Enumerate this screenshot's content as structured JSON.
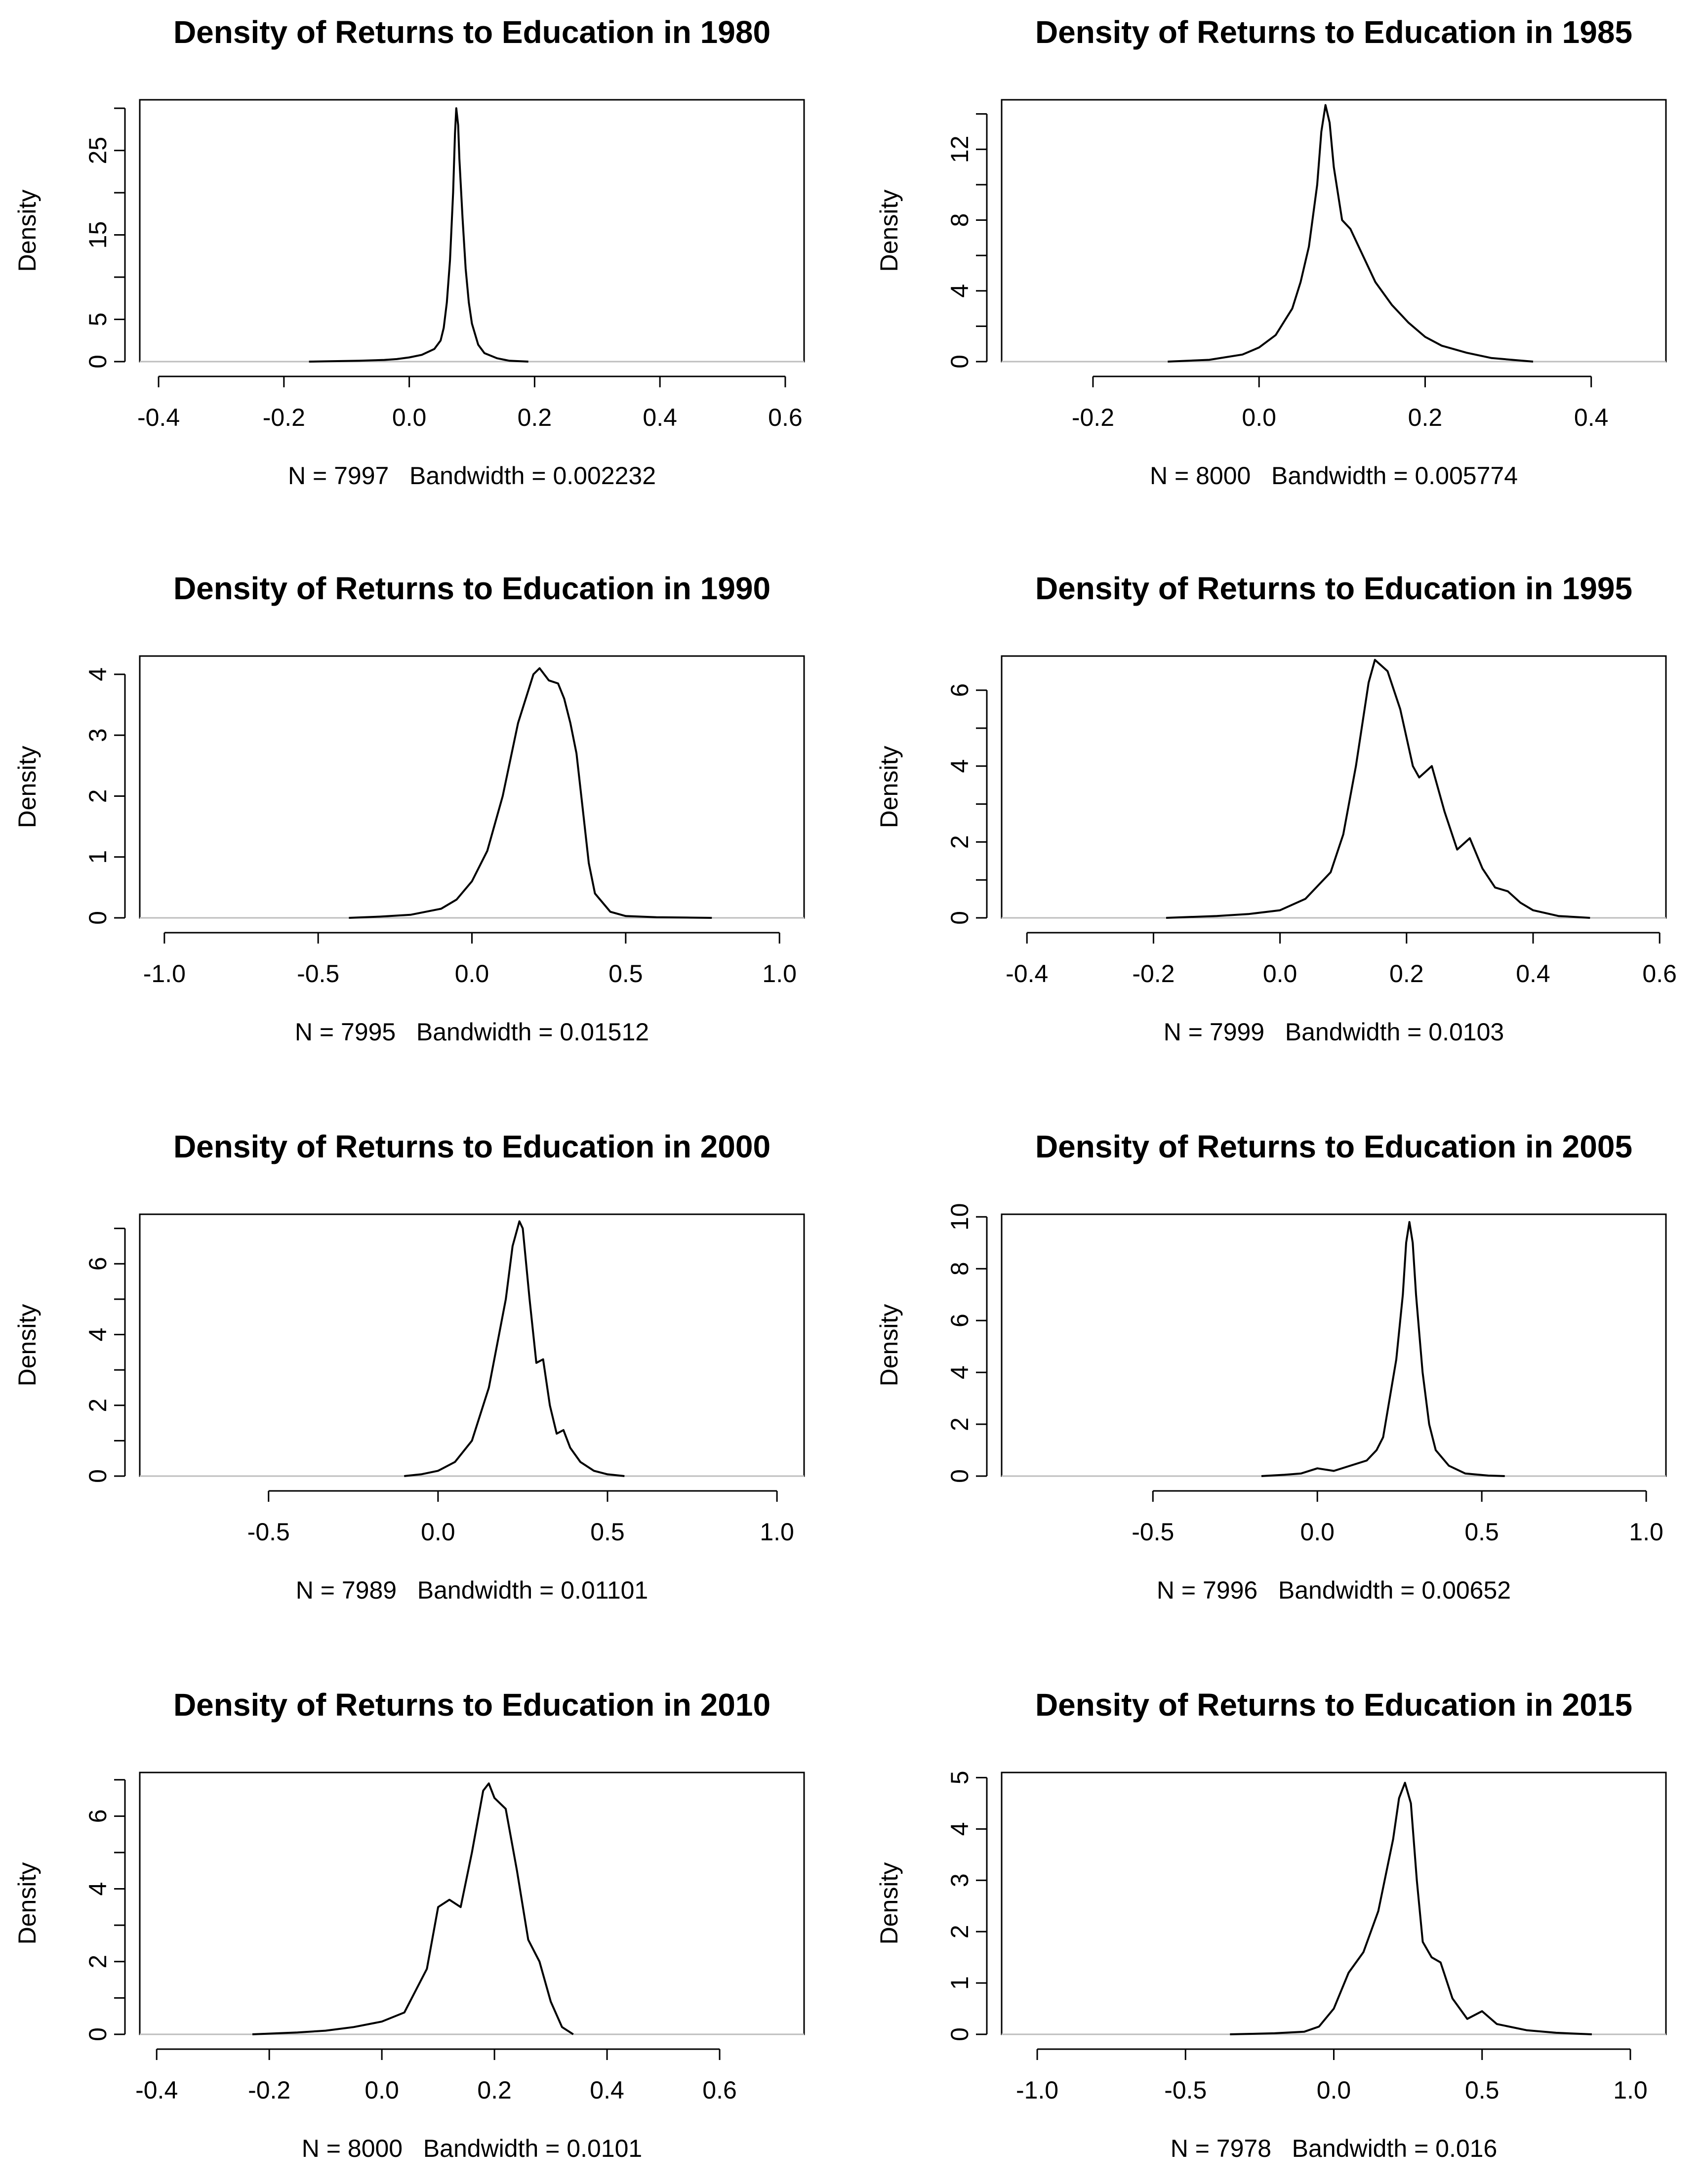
{
  "chart_data": [
    {
      "type": "line",
      "title": "Density of Returns to Education in 1980",
      "ylabel": "Density",
      "subtitle": "N = 7997   Bandwidth = 0.002232",
      "xlim": [
        -0.43,
        0.63
      ],
      "ylim": [
        0,
        31
      ],
      "xticks": [
        -0.4,
        -0.2,
        0.0,
        0.2,
        0.4,
        0.6
      ],
      "xtick_labels": [
        "-0.4",
        "-0.2",
        "0.0",
        "0.2",
        "0.4",
        "0.6"
      ],
      "yticks": [
        0,
        5,
        10,
        15,
        20,
        25,
        30
      ],
      "ytick_labels": [
        "0",
        "5",
        "",
        "15",
        "",
        "25",
        ""
      ],
      "x": [
        -0.16,
        -0.12,
        -0.08,
        -0.04,
        -0.02,
        0.0,
        0.02,
        0.04,
        0.05,
        0.055,
        0.06,
        0.065,
        0.07,
        0.073,
        0.075,
        0.078,
        0.08,
        0.085,
        0.09,
        0.095,
        0.1,
        0.11,
        0.12,
        0.14,
        0.16,
        0.19
      ],
      "y": [
        0.0,
        0.05,
        0.1,
        0.2,
        0.3,
        0.5,
        0.8,
        1.5,
        2.5,
        4.0,
        7.0,
        12.0,
        20.0,
        27.0,
        30.0,
        28.0,
        24.0,
        17.0,
        11.0,
        7.0,
        4.5,
        2.0,
        1.0,
        0.4,
        0.1,
        0.0
      ]
    },
    {
      "type": "line",
      "title": "Density of Returns to Education in 1985",
      "ylabel": "Density",
      "subtitle": "N = 8000   Bandwidth = 0.005774",
      "xlim": [
        -0.31,
        0.49
      ],
      "ylim": [
        0,
        14.8
      ],
      "xticks": [
        -0.2,
        0.0,
        0.2,
        0.4
      ],
      "xtick_labels": [
        "-0.2",
        "0.0",
        "0.2",
        "0.4"
      ],
      "yticks": [
        0,
        2,
        4,
        6,
        8,
        10,
        12,
        14
      ],
      "ytick_labels": [
        "0",
        "",
        "4",
        "",
        "8",
        "",
        "12",
        ""
      ],
      "x": [
        -0.11,
        -0.06,
        -0.02,
        0.0,
        0.02,
        0.04,
        0.05,
        0.06,
        0.07,
        0.075,
        0.08,
        0.085,
        0.09,
        0.1,
        0.11,
        0.12,
        0.14,
        0.16,
        0.18,
        0.2,
        0.22,
        0.25,
        0.28,
        0.33
      ],
      "y": [
        0.0,
        0.1,
        0.4,
        0.8,
        1.5,
        3.0,
        4.5,
        6.5,
        10.0,
        13.0,
        14.5,
        13.5,
        11.0,
        8.0,
        7.5,
        6.5,
        4.5,
        3.2,
        2.2,
        1.4,
        0.9,
        0.5,
        0.2,
        0.0
      ]
    },
    {
      "type": "line",
      "title": "Density of Returns to Education in 1990",
      "ylabel": "Density",
      "subtitle": "N = 7995   Bandwidth = 0.01512",
      "xlim": [
        -1.08,
        1.08
      ],
      "ylim": [
        0,
        4.3
      ],
      "xticks": [
        -1.0,
        -0.5,
        0.0,
        0.5,
        1.0
      ],
      "xtick_labels": [
        "-1.0",
        "-0.5",
        "0.0",
        "0.5",
        "1.0"
      ],
      "yticks": [
        0,
        1,
        2,
        3,
        4
      ],
      "ytick_labels": [
        "0",
        "1",
        "2",
        "3",
        "4"
      ],
      "x": [
        -0.4,
        -0.3,
        -0.2,
        -0.1,
        -0.05,
        0.0,
        0.05,
        0.1,
        0.15,
        0.2,
        0.22,
        0.25,
        0.28,
        0.3,
        0.32,
        0.34,
        0.36,
        0.38,
        0.4,
        0.45,
        0.5,
        0.6,
        0.7,
        0.78
      ],
      "y": [
        0.0,
        0.02,
        0.05,
        0.15,
        0.3,
        0.6,
        1.1,
        2.0,
        3.2,
        4.0,
        4.1,
        3.9,
        3.85,
        3.6,
        3.2,
        2.7,
        1.8,
        0.9,
        0.4,
        0.1,
        0.03,
        0.01,
        0.005,
        0.0
      ]
    },
    {
      "type": "line",
      "title": "Density of Returns to Education in 1995",
      "ylabel": "Density",
      "subtitle": "N = 7999   Bandwidth = 0.0103",
      "xlim": [
        -0.44,
        0.61
      ],
      "ylim": [
        0,
        6.9
      ],
      "xticks": [
        -0.4,
        -0.2,
        0.0,
        0.2,
        0.4,
        0.6
      ],
      "xtick_labels": [
        "-0.4",
        "-0.2",
        "0.0",
        "0.2",
        "0.4",
        "0.6"
      ],
      "yticks": [
        0,
        1,
        2,
        3,
        4,
        5,
        6
      ],
      "ytick_labels": [
        "0",
        "",
        "2",
        "",
        "4",
        "",
        "6"
      ],
      "x": [
        -0.18,
        -0.1,
        -0.05,
        0.0,
        0.04,
        0.08,
        0.1,
        0.12,
        0.14,
        0.15,
        0.17,
        0.19,
        0.21,
        0.22,
        0.24,
        0.26,
        0.28,
        0.3,
        0.32,
        0.34,
        0.36,
        0.38,
        0.4,
        0.44,
        0.49
      ],
      "y": [
        0.0,
        0.05,
        0.1,
        0.2,
        0.5,
        1.2,
        2.2,
        4.0,
        6.2,
        6.8,
        6.5,
        5.5,
        4.0,
        3.7,
        4.0,
        2.8,
        1.8,
        2.1,
        1.3,
        0.8,
        0.7,
        0.4,
        0.2,
        0.05,
        0.0
      ]
    },
    {
      "type": "line",
      "title": "Density of Returns to Education in 2000",
      "ylabel": "Density",
      "subtitle": "N = 7989   Bandwidth = 0.01101",
      "xlim": [
        -0.88,
        1.08
      ],
      "ylim": [
        0,
        7.4
      ],
      "xticks": [
        -0.5,
        0.0,
        0.5,
        1.0
      ],
      "xtick_labels": [
        "-0.5",
        "0.0",
        "0.5",
        "1.0"
      ],
      "yticks": [
        0,
        1,
        2,
        3,
        4,
        5,
        6,
        7
      ],
      "ytick_labels": [
        "0",
        "",
        "2",
        "",
        "4",
        "",
        "6",
        ""
      ],
      "x": [
        -0.1,
        -0.05,
        0.0,
        0.05,
        0.1,
        0.15,
        0.2,
        0.22,
        0.24,
        0.25,
        0.27,
        0.29,
        0.31,
        0.33,
        0.35,
        0.37,
        0.39,
        0.42,
        0.46,
        0.5,
        0.55
      ],
      "y": [
        0.0,
        0.05,
        0.15,
        0.4,
        1.0,
        2.5,
        5.0,
        6.5,
        7.2,
        7.0,
        5.0,
        3.2,
        3.3,
        2.0,
        1.2,
        1.3,
        0.8,
        0.4,
        0.15,
        0.05,
        0.0
      ]
    },
    {
      "type": "line",
      "title": "Density of Returns to Education in 2005",
      "ylabel": "Density",
      "subtitle": "N = 7996   Bandwidth = 0.00652",
      "xlim": [
        -0.96,
        1.06
      ],
      "ylim": [
        0,
        10.1
      ],
      "xticks": [
        -0.5,
        0.0,
        0.5,
        1.0
      ],
      "xtick_labels": [
        "-0.5",
        "0.0",
        "0.5",
        "1.0"
      ],
      "yticks": [
        0,
        2,
        4,
        6,
        8,
        10
      ],
      "ytick_labels": [
        "0",
        "2",
        "4",
        "6",
        "8",
        "10"
      ],
      "x": [
        -0.17,
        -0.1,
        -0.05,
        0.0,
        0.05,
        0.1,
        0.15,
        0.18,
        0.2,
        0.22,
        0.24,
        0.26,
        0.27,
        0.28,
        0.29,
        0.3,
        0.31,
        0.32,
        0.34,
        0.36,
        0.4,
        0.45,
        0.52,
        0.57
      ],
      "y": [
        0.0,
        0.05,
        0.1,
        0.3,
        0.2,
        0.4,
        0.6,
        1.0,
        1.5,
        3.0,
        4.5,
        7.0,
        9.0,
        9.8,
        9.0,
        7.0,
        5.5,
        4.0,
        2.0,
        1.0,
        0.4,
        0.1,
        0.02,
        0.0
      ]
    },
    {
      "type": "line",
      "title": "Density of Returns to Education in 2010",
      "ylabel": "Density",
      "subtitle": "N = 8000   Bandwidth = 0.0101",
      "xlim": [
        -0.43,
        0.75
      ],
      "ylim": [
        0,
        7.2
      ],
      "xticks": [
        -0.4,
        -0.2,
        0.0,
        0.2,
        0.4,
        0.6
      ],
      "xtick_labels": [
        "-0.4",
        "-0.2",
        "0.0",
        "0.2",
        "0.4",
        "0.6"
      ],
      "yticks": [
        0,
        1,
        2,
        3,
        4,
        5,
        6,
        7
      ],
      "ytick_labels": [
        "0",
        "",
        "2",
        "",
        "4",
        "",
        "6",
        ""
      ],
      "x": [
        -0.23,
        -0.15,
        -0.1,
        -0.05,
        0.0,
        0.04,
        0.08,
        0.1,
        0.12,
        0.14,
        0.16,
        0.18,
        0.19,
        0.2,
        0.22,
        0.24,
        0.26,
        0.28,
        0.3,
        0.32,
        0.34
      ],
      "y": [
        0.0,
        0.05,
        0.1,
        0.2,
        0.35,
        0.6,
        1.8,
        3.5,
        3.7,
        3.5,
        5.0,
        6.7,
        6.9,
        6.5,
        6.2,
        4.5,
        2.6,
        2.0,
        0.9,
        0.2,
        0.0
      ]
    },
    {
      "type": "line",
      "title": "Density of Returns to Education in 2015",
      "ylabel": "Density",
      "subtitle": "N = 7978   Bandwidth = 0.016",
      "xlim": [
        -1.12,
        1.12
      ],
      "ylim": [
        0,
        5.1
      ],
      "xticks": [
        -1.0,
        -0.5,
        0.0,
        0.5,
        1.0
      ],
      "xtick_labels": [
        "-1.0",
        "-0.5",
        "0.0",
        "0.5",
        "1.0"
      ],
      "yticks": [
        0,
        1,
        2,
        3,
        4,
        5
      ],
      "ytick_labels": [
        "0",
        "1",
        "2",
        "3",
        "4",
        "5"
      ],
      "x": [
        -0.35,
        -0.2,
        -0.1,
        -0.05,
        0.0,
        0.05,
        0.1,
        0.15,
        0.2,
        0.22,
        0.24,
        0.26,
        0.28,
        0.3,
        0.33,
        0.36,
        0.4,
        0.45,
        0.5,
        0.55,
        0.65,
        0.75,
        0.87
      ],
      "y": [
        0.0,
        0.02,
        0.05,
        0.15,
        0.5,
        1.2,
        1.6,
        2.4,
        3.8,
        4.6,
        4.9,
        4.5,
        3.0,
        1.8,
        1.5,
        1.4,
        0.7,
        0.3,
        0.45,
        0.2,
        0.08,
        0.03,
        0.0
      ]
    }
  ]
}
